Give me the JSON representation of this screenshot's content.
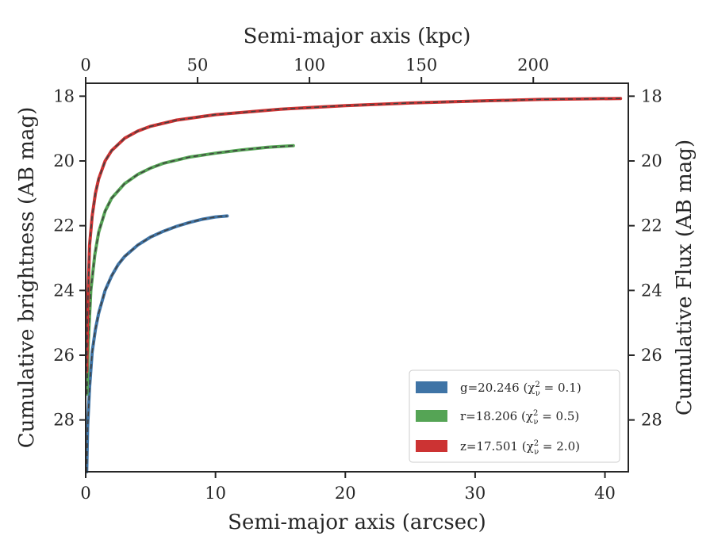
{
  "chart_data": {
    "type": "line",
    "xlabel": "Semi-major axis (arcsec)",
    "ylabel": "Cumulative brightness (AB mag)",
    "top_xlabel": "Semi-major axis (kpc)",
    "right_ylabel": "Cumulative Flux (AB mag)",
    "xlim": [
      0,
      41.8
    ],
    "ylim": [
      29.6,
      17.6
    ],
    "y_inverted": true,
    "x_ticks": [
      "0",
      "10",
      "20",
      "30",
      "40"
    ],
    "y_ticks": [
      "18",
      "20",
      "22",
      "24",
      "26",
      "28"
    ],
    "top_x_ticks": [
      "0",
      "50",
      "100",
      "150",
      "200"
    ],
    "top_x_tick_arcsec": [
      0,
      8.62,
      17.24,
      25.86,
      34.48
    ],
    "right_y_ticks": [
      "18",
      "20",
      "22",
      "24",
      "26",
      "28"
    ],
    "legend_position": "lower right",
    "fit_line_color": "#404040",
    "series": [
      {
        "label_prefix": "g=20.246 ",
        "chi_text": "(χ",
        "chi_sup": "2",
        "chi_sub": "ν",
        "chi_value": " = 0.1)",
        "color": "#3f74a6",
        "x": [
          0.08,
          0.15,
          0.3,
          0.5,
          0.75,
          1.0,
          1.5,
          2.0,
          2.5,
          3.0,
          4.0,
          5.0,
          6.0,
          7.0,
          8.0,
          9.0,
          10.0,
          10.9
        ],
        "y": [
          29.6,
          28.2,
          27.0,
          25.9,
          25.2,
          24.7,
          24.0,
          23.55,
          23.2,
          22.95,
          22.6,
          22.35,
          22.17,
          22.02,
          21.9,
          21.8,
          21.73,
          21.7
        ]
      },
      {
        "label_prefix": "r=18.206 ",
        "chi_text": "(χ",
        "chi_sup": "2",
        "chi_sub": "ν",
        "chi_value": " = 0.5)",
        "color": "#55a455",
        "x": [
          0.1,
          0.2,
          0.4,
          0.7,
          1.0,
          1.5,
          2.0,
          3.0,
          4.0,
          5.0,
          6.0,
          8.0,
          10.0,
          12.0,
          14.0,
          16.0
        ],
        "y": [
          27.2,
          25.6,
          24.0,
          22.9,
          22.2,
          21.55,
          21.15,
          20.7,
          20.42,
          20.22,
          20.07,
          19.88,
          19.76,
          19.66,
          19.58,
          19.53
        ]
      },
      {
        "label_prefix": "z=17.501 ",
        "chi_text": "(χ",
        "chi_sup": "2",
        "chi_sub": "ν",
        "chi_value": " = 2.0)",
        "color": "#cc3333",
        "x": [
          0.08,
          0.15,
          0.3,
          0.5,
          0.75,
          1.0,
          1.5,
          2.0,
          3.0,
          4.0,
          5.0,
          7.0,
          10.0,
          15.0,
          20.0,
          25.0,
          30.0,
          35.0,
          41.2
        ],
        "y": [
          26.5,
          24.5,
          22.6,
          21.7,
          21.0,
          20.55,
          20.0,
          19.68,
          19.3,
          19.08,
          18.93,
          18.74,
          18.57,
          18.4,
          18.29,
          18.21,
          18.15,
          18.1,
          18.07
        ]
      }
    ]
  }
}
